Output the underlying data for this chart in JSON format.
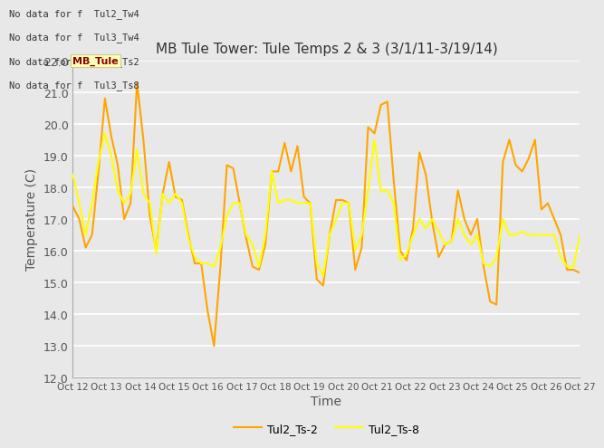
{
  "title": "MB Tule Tower: Tule Temps 2 & 3 (3/1/11-3/19/14)",
  "xlabel": "Time",
  "ylabel": "Temperature (C)",
  "ylim": [
    12.0,
    22.0
  ],
  "yticks": [
    12.0,
    13.0,
    14.0,
    15.0,
    16.0,
    17.0,
    18.0,
    19.0,
    20.0,
    21.0,
    22.0
  ],
  "xtick_labels": [
    "Oct 12",
    "Oct 13",
    "Oct 14",
    "Oct 15",
    "Oct 16",
    "Oct 17",
    "Oct 18",
    "Oct 19",
    "Oct 20",
    "Oct 21",
    "Oct 22",
    "Oct 23",
    "Oct 24",
    "Oct 25",
    "Oct 26",
    "Oct 27"
  ],
  "bg_color": "#e8e8e8",
  "line1_color": "#FFA500",
  "line2_color": "#FFFF00",
  "legend_label1": "Tul2_Ts-2",
  "legend_label2": "Tul2_Ts-8",
  "no_data_texts": [
    "No data for f  Tul2_Tw4",
    "No data for f  Tul3_Tw4",
    "No data for f  Tul3_Ts2",
    "No data for f  Tul3_Ts8"
  ],
  "tooltip_text": "MB_Tule",
  "ts2_y": [
    17.4,
    17.0,
    16.1,
    16.5,
    18.5,
    20.8,
    19.6,
    18.7,
    17.0,
    17.5,
    21.3,
    19.5,
    17.1,
    16.0,
    17.8,
    18.8,
    17.7,
    17.6,
    16.5,
    15.6,
    15.6,
    14.1,
    13.0,
    15.5,
    18.7,
    18.6,
    17.5,
    16.4,
    15.5,
    15.4,
    16.2,
    18.5,
    18.5,
    19.4,
    18.5,
    19.3,
    17.7,
    17.5,
    15.1,
    14.9,
    16.5,
    17.6,
    17.6,
    17.5,
    15.4,
    16.1,
    19.9,
    19.7,
    20.6,
    20.7,
    18.2,
    16.0,
    15.7,
    16.7,
    19.1,
    18.4,
    16.9,
    15.8,
    16.2,
    16.3,
    17.9,
    17.0,
    16.5,
    17.0,
    15.5,
    14.4,
    14.3,
    18.8,
    19.5,
    18.7,
    18.5,
    18.9,
    19.5,
    17.3,
    17.5,
    17.0,
    16.5,
    15.4,
    15.4,
    15.3
  ],
  "ts8_y": [
    18.4,
    17.5,
    16.5,
    17.5,
    18.8,
    19.7,
    19.0,
    17.9,
    17.5,
    17.8,
    19.2,
    17.8,
    17.5,
    15.9,
    17.8,
    17.5,
    17.8,
    17.5,
    16.4,
    15.8,
    15.6,
    15.6,
    15.5,
    16.1,
    17.1,
    17.5,
    17.5,
    16.5,
    16.2,
    15.5,
    16.5,
    18.5,
    17.5,
    17.6,
    17.6,
    17.5,
    17.5,
    17.5,
    15.6,
    15.2,
    16.5,
    17.0,
    17.5,
    17.5,
    16.0,
    16.5,
    17.9,
    19.5,
    17.9,
    17.9,
    17.5,
    15.7,
    15.9,
    16.5,
    17.0,
    16.7,
    17.0,
    16.6,
    16.2,
    16.3,
    17.0,
    16.5,
    16.2,
    16.5,
    15.6,
    15.5,
    15.8,
    17.0,
    16.5,
    16.5,
    16.6,
    16.5,
    16.5,
    16.5,
    16.5,
    16.5,
    15.8,
    15.5,
    15.5,
    16.5
  ]
}
